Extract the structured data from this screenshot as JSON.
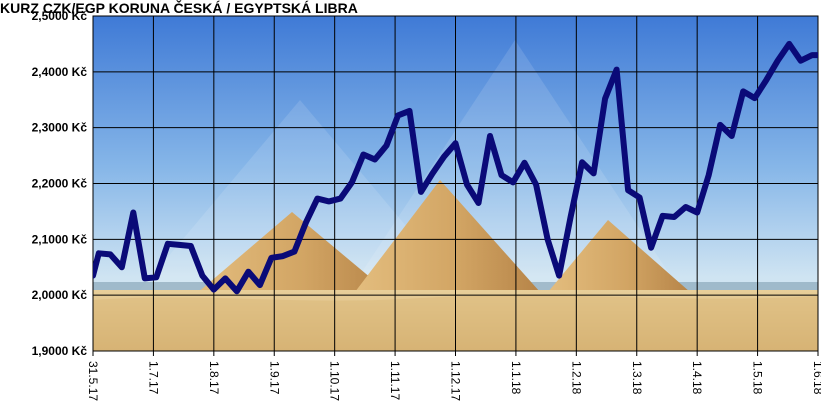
{
  "chart_data": {
    "type": "line",
    "title": "KURZ CZK/EGP KORUNA ČESKÁ / EGYPTSKÁ LIBRA",
    "subtitle": "",
    "xlabel": "",
    "ylabel": "",
    "ylim": [
      1.9,
      2.5
    ],
    "yticks": [
      "1,9000 Kč",
      "2,0000 Kč",
      "2,1000 Kč",
      "2,2000 Kč",
      "2,3000 Kč",
      "2,4000 Kč",
      "2,5000 Kč"
    ],
    "xticks": [
      "31.5.17",
      "1.7.17",
      "1.8.17",
      "1.9.17",
      "1.10.17",
      "1.11.17",
      "1.12.17",
      "1.1.18",
      "1.2.18",
      "1.3.18",
      "1.4.18",
      "1.5.18",
      "1.6.18"
    ],
    "grid": true,
    "legend": "none",
    "background": "photo of pyramids",
    "series": [
      {
        "color": "#0a0a78",
        "x": [
          0,
          0.5,
          1.5,
          2.5,
          3.5,
          4.5,
          5.5,
          6.5,
          7.5,
          8.5,
          9.5,
          10.5,
          11.5,
          12.5,
          13.5,
          14.5,
          15.5,
          16.5,
          17.5,
          18.5,
          19.5,
          20.5,
          21.5,
          22.5,
          23.5,
          24.5,
          25.5,
          26.5,
          27.5,
          28.5,
          29.5,
          30.5,
          31.5,
          32.5,
          33.5,
          34.5,
          35.5,
          36.5,
          37.5,
          38.5,
          39.5,
          40.5,
          41.5,
          42.5,
          43.5,
          44.5,
          45.5,
          46.5,
          47.5,
          48.5,
          49.5,
          50.5,
          51.5,
          52.5,
          53.5,
          54.5,
          55.5,
          56.5,
          57.5,
          58.5,
          59.5,
          60.5,
          61.5,
          62.5,
          63
        ],
        "values": [
          2.035,
          2.075,
          2.073,
          2.05,
          2.148,
          2.03,
          2.032,
          2.092,
          2.09,
          2.088,
          2.035,
          2.01,
          2.03,
          2.007,
          2.042,
          2.018,
          2.067,
          2.07,
          2.078,
          2.13,
          2.173,
          2.168,
          2.173,
          2.202,
          2.252,
          2.243,
          2.268,
          2.322,
          2.33,
          2.185,
          2.218,
          2.248,
          2.272,
          2.198,
          2.165,
          2.285,
          2.215,
          2.202,
          2.237,
          2.198,
          2.1,
          2.035,
          2.14,
          2.238,
          2.218,
          2.352,
          2.404,
          2.188,
          2.175,
          2.085,
          2.142,
          2.14,
          2.158,
          2.148,
          2.215,
          2.305,
          2.285,
          2.365,
          2.353,
          2.385,
          2.42,
          2.45,
          2.42,
          2.43,
          2.43
        ]
      }
    ]
  }
}
